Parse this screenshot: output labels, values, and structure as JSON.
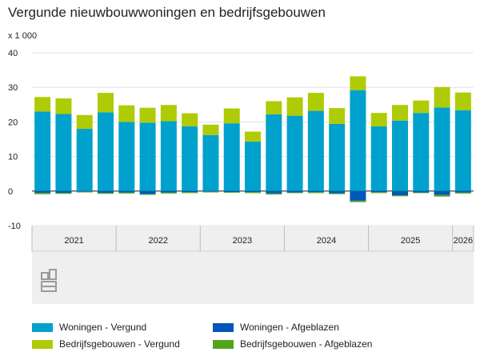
{
  "title": "Vergunde nieuwbouwwoningen en bedrijfsgebouwen",
  "colors": {
    "woningen_vergund": "#00a1cd",
    "bedrijfsgebouwen_vergund": "#afcb05",
    "woningen_afgeblazen": "#0058b8",
    "bedrijfsgebouwen_afgeblazen": "#53a31d"
  },
  "logo_icon": "cbs-logo-icon",
  "chart_data": {
    "type": "bar",
    "stacked": true,
    "unit_label": "x 1 000",
    "ylim": [
      -10,
      40
    ],
    "yticks": [
      -10,
      0,
      10,
      20,
      30,
      40
    ],
    "year_labels": [
      "2021",
      "2022",
      "2023",
      "2024",
      "2025",
      "2026"
    ],
    "categories": [
      "2021-K1",
      "2021-K2",
      "2021-K3",
      "2021-K4",
      "2022-K1",
      "2022-K2",
      "2022-K3",
      "2022-K4",
      "2023-K1",
      "2023-K2",
      "2023-K3",
      "2023-K4",
      "2024-K1",
      "2024-K2",
      "2024-K3",
      "2024-K4",
      "2025-K1",
      "2025-K2",
      "2025-K3",
      "2025-K4",
      "2026-K1"
    ],
    "series": [
      {
        "name": "Woningen - Vergund",
        "color_key": "woningen_vergund",
        "values": [
          23,
          22.3,
          18,
          22.8,
          20,
          19.8,
          20.2,
          18.7,
          16.2,
          19.6,
          14.3,
          22.2,
          21.8,
          23.2,
          19.4,
          29.2,
          18.7,
          20.4,
          22.6,
          24.2,
          23.4
        ]
      },
      {
        "name": "Bedrijfsgebouwen - Vergund",
        "color_key": "bedrijfsgebouwen_vergund",
        "values": [
          4.2,
          4.5,
          4,
          5.6,
          4.8,
          4.3,
          4.7,
          3.8,
          3,
          4.3,
          2.9,
          3.8,
          5.3,
          5.2,
          4.6,
          4,
          3.9,
          4.5,
          3.6,
          5.9,
          5.1
        ]
      },
      {
        "name": "Woningen - Afgeblazen",
        "color_key": "woningen_afgeblazen",
        "values": [
          -0.5,
          -0.5,
          -0.2,
          -0.5,
          -0.4,
          -0.9,
          -0.4,
          -0.3,
          -0.2,
          -0.3,
          -0.3,
          -0.7,
          -0.4,
          -0.3,
          -0.7,
          -2.8,
          -0.3,
          -1.2,
          -0.4,
          -1.1,
          -0.4
        ]
      },
      {
        "name": "Bedrijfsgebouwen - Afgeblazen",
        "color_key": "bedrijfsgebouwen_afgeblazen",
        "values": [
          -0.4,
          -0.3,
          -0.2,
          -0.3,
          -0.3,
          -0.2,
          -0.3,
          -0.3,
          -0.2,
          -0.2,
          -0.3,
          -0.3,
          -0.2,
          -0.3,
          -0.2,
          -0.4,
          -0.3,
          -0.3,
          -0.2,
          -0.5,
          -0.3
        ]
      }
    ],
    "legend": [
      {
        "label": "Woningen - Vergund",
        "color_key": "woningen_vergund"
      },
      {
        "label": "Woningen - Afgeblazen",
        "color_key": "woningen_afgeblazen"
      },
      {
        "label": "Bedrijfsgebouwen - Vergund",
        "color_key": "bedrijfsgebouwen_vergund"
      },
      {
        "label": "Bedrijfsgebouwen - Afgeblazen",
        "color_key": "bedrijfsgebouwen_afgeblazen"
      }
    ]
  }
}
